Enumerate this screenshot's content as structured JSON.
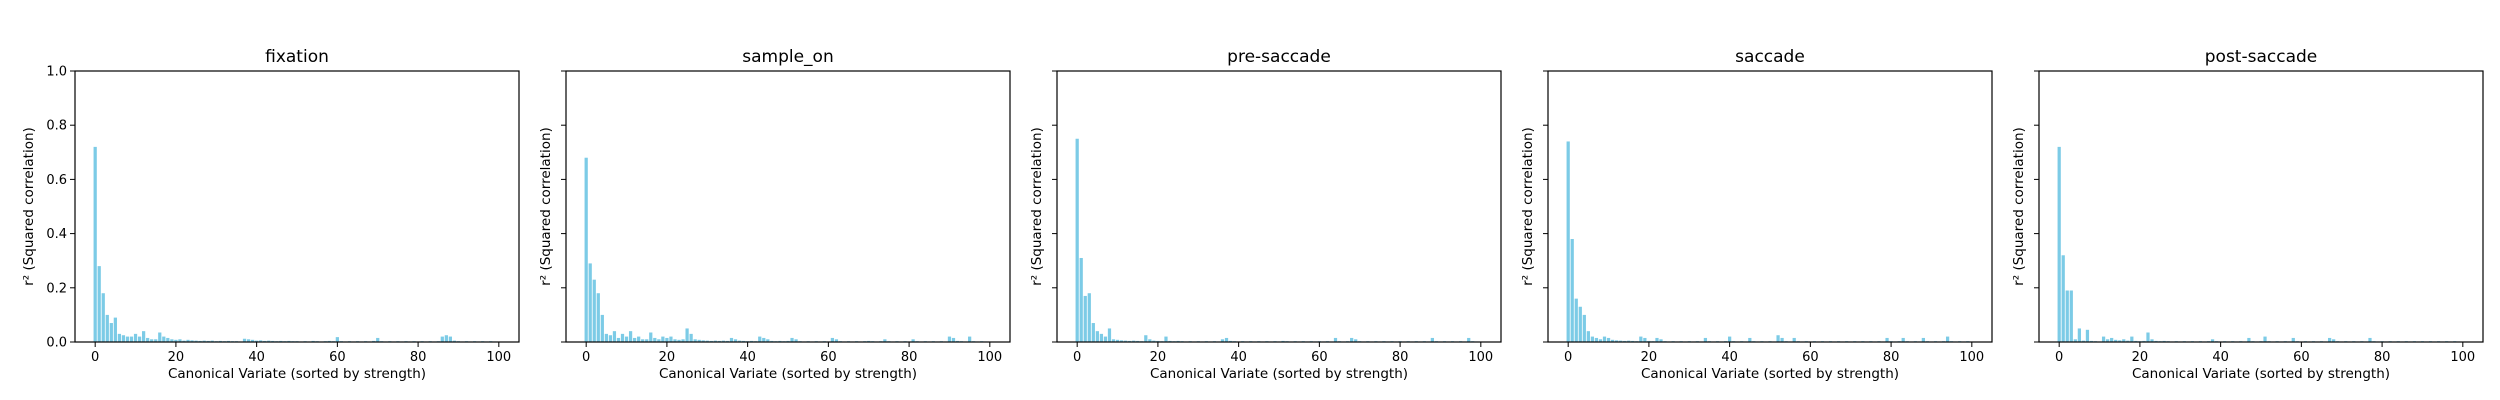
{
  "figure": {
    "ylabel": "r² (Squared correlation)",
    "xlabel": "Canonical Variate (sorted by strength)"
  },
  "colors": {
    "bar": "#7ccbe6",
    "axis": "#000000"
  },
  "chart_data": [
    {
      "type": "bar",
      "title": "fixation",
      "xlabel": "Canonical Variate (sorted by strength)",
      "ylabel": "r² (Squared correlation)",
      "xlim": [
        -5,
        105
      ],
      "ylim": [
        0,
        1.0
      ],
      "xticks": [
        0,
        20,
        40,
        60,
        80,
        100
      ],
      "yticks": [
        0.0,
        0.2,
        0.4,
        0.6,
        0.8,
        1.0
      ],
      "grid": false,
      "x": [
        0,
        1,
        2,
        3,
        4,
        5,
        6,
        7,
        8,
        9,
        10,
        11,
        12,
        13,
        14,
        15,
        16,
        17,
        18,
        19,
        20,
        21,
        22,
        23,
        24,
        25,
        26,
        27,
        28,
        29,
        30,
        31,
        32,
        33,
        34,
        35,
        36,
        37,
        38,
        39,
        40,
        41,
        42,
        43,
        44,
        45,
        46,
        47,
        48,
        49,
        50,
        51,
        52,
        53,
        54,
        55,
        56,
        57,
        58,
        59,
        60,
        61,
        62,
        63,
        64,
        65,
        66,
        67,
        68,
        69,
        70,
        71,
        72,
        73,
        74,
        75,
        76,
        77,
        78,
        79,
        80,
        81,
        82,
        83,
        84,
        85,
        86,
        87,
        88,
        89,
        90,
        91,
        92,
        93,
        94,
        95,
        96,
        97,
        98,
        99
      ],
      "values": [
        0.72,
        0.28,
        0.18,
        0.1,
        0.07,
        0.09,
        0.03,
        0.025,
        0.02,
        0.02,
        0.03,
        0.02,
        0.04,
        0.015,
        0.01,
        0.01,
        0.035,
        0.02,
        0.015,
        0.01,
        0.008,
        0.01,
        0.005,
        0.008,
        0.006,
        0.005,
        0.004,
        0.005,
        0.004,
        0.005,
        0.003,
        0.004,
        0.003,
        0.004,
        0.003,
        0.003,
        0.002,
        0.012,
        0.01,
        0.008,
        0.005,
        0.006,
        0.004,
        0.005,
        0.004,
        0.003,
        0.004,
        0.003,
        0.004,
        0.003,
        0.003,
        0.002,
        0.003,
        0.002,
        0.004,
        0.003,
        0.002,
        0.003,
        0.004,
        0.003,
        0.018,
        0.003,
        0.002,
        0.003,
        0.002,
        0.003,
        0.002,
        0.003,
        0.002,
        0.004,
        0.015,
        0.003,
        0.002,
        0.003,
        0.002,
        0.003,
        0.002,
        0.003,
        0.002,
        0.003,
        0.002,
        0.003,
        0.002,
        0.003,
        0.002,
        0.003,
        0.02,
        0.025,
        0.02,
        0.005,
        0.003,
        0.002,
        0.003,
        0.002,
        0.003,
        0.002,
        0.003,
        0.002,
        0.003,
        0.002
      ]
    },
    {
      "type": "bar",
      "title": "sample_on",
      "xlabel": "Canonical Variate (sorted by strength)",
      "ylabel": "",
      "xlim": [
        -5,
        105
      ],
      "ylim": [
        0,
        1.0
      ],
      "xticks": [
        0,
        20,
        40,
        60,
        80,
        100
      ],
      "grid": false,
      "x": [
        0,
        1,
        2,
        3,
        4,
        5,
        6,
        7,
        8,
        9,
        10,
        11,
        12,
        13,
        14,
        15,
        16,
        17,
        18,
        19,
        20,
        21,
        22,
        23,
        24,
        25,
        26,
        27,
        28,
        29,
        30,
        31,
        32,
        33,
        34,
        35,
        36,
        37,
        38,
        39,
        40,
        41,
        42,
        43,
        44,
        45,
        46,
        47,
        48,
        49,
        50,
        51,
        52,
        53,
        54,
        55,
        56,
        57,
        58,
        59,
        60,
        61,
        62,
        63,
        64,
        65,
        66,
        67,
        68,
        69,
        70,
        71,
        72,
        73,
        74,
        75,
        76,
        77,
        78,
        79,
        80,
        81,
        82,
        83,
        84,
        85,
        86,
        87,
        88,
        89,
        90,
        91,
        92,
        93,
        94,
        95,
        96,
        97,
        98,
        99
      ],
      "values": [
        0.68,
        0.29,
        0.23,
        0.18,
        0.1,
        0.03,
        0.025,
        0.04,
        0.015,
        0.03,
        0.02,
        0.04,
        0.015,
        0.02,
        0.01,
        0.01,
        0.035,
        0.015,
        0.01,
        0.02,
        0.015,
        0.02,
        0.01,
        0.008,
        0.01,
        0.05,
        0.03,
        0.01,
        0.008,
        0.006,
        0.005,
        0.004,
        0.005,
        0.004,
        0.005,
        0.004,
        0.015,
        0.01,
        0.005,
        0.004,
        0.003,
        0.004,
        0.003,
        0.02,
        0.015,
        0.01,
        0.004,
        0.003,
        0.004,
        0.003,
        0.004,
        0.015,
        0.01,
        0.003,
        0.002,
        0.003,
        0.002,
        0.003,
        0.002,
        0.003,
        0.002,
        0.015,
        0.01,
        0.003,
        0.002,
        0.003,
        0.002,
        0.003,
        0.002,
        0.003,
        0.004,
        0.003,
        0.002,
        0.003,
        0.01,
        0.003,
        0.002,
        0.003,
        0.002,
        0.003,
        0.002,
        0.01,
        0.003,
        0.002,
        0.003,
        0.002,
        0.003,
        0.002,
        0.003,
        0.002,
        0.02,
        0.015,
        0.004,
        0.003,
        0.002,
        0.02,
        0.003,
        0.002,
        0.003,
        0.002
      ]
    },
    {
      "type": "bar",
      "title": "pre-saccade",
      "xlabel": "Canonical Variate (sorted by strength)",
      "ylabel": "",
      "xlim": [
        -5,
        105
      ],
      "ylim": [
        0,
        1.0
      ],
      "xticks": [
        0,
        20,
        40,
        60,
        80,
        100
      ],
      "grid": false,
      "x": [
        0,
        1,
        2,
        3,
        4,
        5,
        6,
        7,
        8,
        9,
        10,
        11,
        12,
        13,
        14,
        15,
        16,
        17,
        18,
        19,
        20,
        21,
        22,
        23,
        24,
        25,
        26,
        27,
        28,
        29,
        30,
        31,
        32,
        33,
        34,
        35,
        36,
        37,
        38,
        39,
        40,
        41,
        42,
        43,
        44,
        45,
        46,
        47,
        48,
        49,
        50,
        51,
        52,
        53,
        54,
        55,
        56,
        57,
        58,
        59,
        60,
        61,
        62,
        63,
        64,
        65,
        66,
        67,
        68,
        69,
        70,
        71,
        72,
        73,
        74,
        75,
        76,
        77,
        78,
        79,
        80,
        81,
        82,
        83,
        84,
        85,
        86,
        87,
        88,
        89,
        90,
        91,
        92,
        93,
        94,
        95,
        96,
        97,
        98,
        99
      ],
      "values": [
        0.75,
        0.31,
        0.17,
        0.18,
        0.07,
        0.04,
        0.03,
        0.02,
        0.05,
        0.01,
        0.008,
        0.006,
        0.005,
        0.004,
        0.005,
        0.004,
        0.003,
        0.025,
        0.01,
        0.005,
        0.004,
        0.003,
        0.02,
        0.004,
        0.003,
        0.004,
        0.003,
        0.002,
        0.003,
        0.002,
        0.003,
        0.002,
        0.003,
        0.002,
        0.003,
        0.002,
        0.01,
        0.015,
        0.004,
        0.003,
        0.002,
        0.003,
        0.002,
        0.003,
        0.002,
        0.003,
        0.002,
        0.003,
        0.002,
        0.003,
        0.002,
        0.004,
        0.003,
        0.002,
        0.003,
        0.002,
        0.003,
        0.002,
        0.003,
        0.002,
        0.003,
        0.002,
        0.003,
        0.002,
        0.015,
        0.003,
        0.002,
        0.003,
        0.015,
        0.01,
        0.003,
        0.002,
        0.003,
        0.002,
        0.003,
        0.002,
        0.003,
        0.002,
        0.003,
        0.002,
        0.003,
        0.002,
        0.003,
        0.002,
        0.003,
        0.002,
        0.003,
        0.002,
        0.015,
        0.003,
        0.002,
        0.003,
        0.002,
        0.003,
        0.002,
        0.003,
        0.002,
        0.015,
        0.003,
        0.002
      ]
    },
    {
      "type": "bar",
      "title": "saccade",
      "xlabel": "Canonical Variate (sorted by strength)",
      "ylabel": "",
      "xlim": [
        -5,
        105
      ],
      "ylim": [
        0,
        1.0
      ],
      "xticks": [
        0,
        20,
        40,
        60,
        80,
        100
      ],
      "grid": false,
      "x": [
        0,
        1,
        2,
        3,
        4,
        5,
        6,
        7,
        8,
        9,
        10,
        11,
        12,
        13,
        14,
        15,
        16,
        17,
        18,
        19,
        20,
        21,
        22,
        23,
        24,
        25,
        26,
        27,
        28,
        29,
        30,
        31,
        32,
        33,
        34,
        35,
        36,
        37,
        38,
        39,
        40,
        41,
        42,
        43,
        44,
        45,
        46,
        47,
        48,
        49,
        50,
        51,
        52,
        53,
        54,
        55,
        56,
        57,
        58,
        59,
        60,
        61,
        62,
        63,
        64,
        65,
        66,
        67,
        68,
        69,
        70,
        71,
        72,
        73,
        74,
        75,
        76,
        77,
        78,
        79,
        80,
        81,
        82,
        83,
        84,
        85,
        86,
        87,
        88,
        89,
        90,
        91,
        92,
        93,
        94,
        95,
        96,
        97,
        98,
        99
      ],
      "values": [
        0.74,
        0.38,
        0.16,
        0.13,
        0.1,
        0.04,
        0.02,
        0.015,
        0.01,
        0.02,
        0.015,
        0.008,
        0.006,
        0.005,
        0.004,
        0.005,
        0.004,
        0.003,
        0.02,
        0.015,
        0.004,
        0.003,
        0.015,
        0.01,
        0.003,
        0.002,
        0.003,
        0.002,
        0.003,
        0.002,
        0.003,
        0.002,
        0.003,
        0.002,
        0.015,
        0.003,
        0.002,
        0.003,
        0.002,
        0.003,
        0.02,
        0.003,
        0.002,
        0.003,
        0.002,
        0.015,
        0.003,
        0.002,
        0.003,
        0.002,
        0.003,
        0.002,
        0.025,
        0.015,
        0.003,
        0.002,
        0.015,
        0.003,
        0.002,
        0.003,
        0.002,
        0.003,
        0.002,
        0.003,
        0.002,
        0.003,
        0.002,
        0.003,
        0.002,
        0.003,
        0.002,
        0.003,
        0.002,
        0.003,
        0.002,
        0.003,
        0.002,
        0.003,
        0.002,
        0.015,
        0.003,
        0.002,
        0.003,
        0.015,
        0.003,
        0.002,
        0.003,
        0.002,
        0.015,
        0.003,
        0.002,
        0.003,
        0.002,
        0.003,
        0.02,
        0.003,
        0.002,
        0.003,
        0.002,
        0.003
      ]
    },
    {
      "type": "bar",
      "title": "post-saccade",
      "xlabel": "Canonical Variate (sorted by strength)",
      "ylabel": "",
      "xlim": [
        -5,
        105
      ],
      "ylim": [
        0,
        1.0
      ],
      "xticks": [
        0,
        20,
        40,
        60,
        80,
        100
      ],
      "grid": false,
      "x": [
        0,
        1,
        2,
        3,
        4,
        5,
        6,
        7,
        8,
        9,
        10,
        11,
        12,
        13,
        14,
        15,
        16,
        17,
        18,
        19,
        20,
        21,
        22,
        23,
        24,
        25,
        26,
        27,
        28,
        29,
        30,
        31,
        32,
        33,
        34,
        35,
        36,
        37,
        38,
        39,
        40,
        41,
        42,
        43,
        44,
        45,
        46,
        47,
        48,
        49,
        50,
        51,
        52,
        53,
        54,
        55,
        56,
        57,
        58,
        59,
        60,
        61,
        62,
        63,
        64,
        65,
        66,
        67,
        68,
        69,
        70,
        71,
        72,
        73,
        74,
        75,
        76,
        77,
        78,
        79,
        80,
        81,
        82,
        83,
        84,
        85,
        86,
        87,
        88,
        89,
        90,
        91,
        92,
        93,
        94,
        95,
        96,
        97,
        98,
        99
      ],
      "values": [
        0.72,
        0.32,
        0.19,
        0.19,
        0.01,
        0.05,
        0.005,
        0.045,
        0.004,
        0.003,
        0.002,
        0.02,
        0.01,
        0.015,
        0.008,
        0.006,
        0.01,
        0.005,
        0.02,
        0.004,
        0.003,
        0.004,
        0.035,
        0.01,
        0.004,
        0.003,
        0.004,
        0.003,
        0.002,
        0.003,
        0.002,
        0.003,
        0.002,
        0.003,
        0.002,
        0.003,
        0.002,
        0.003,
        0.01,
        0.003,
        0.002,
        0.003,
        0.002,
        0.003,
        0.002,
        0.003,
        0.002,
        0.015,
        0.003,
        0.002,
        0.003,
        0.02,
        0.003,
        0.002,
        0.003,
        0.002,
        0.003,
        0.002,
        0.015,
        0.003,
        0.002,
        0.003,
        0.002,
        0.003,
        0.002,
        0.003,
        0.002,
        0.015,
        0.01,
        0.003,
        0.002,
        0.003,
        0.002,
        0.003,
        0.002,
        0.003,
        0.002,
        0.015,
        0.003,
        0.002,
        0.003,
        0.002,
        0.003,
        0.002,
        0.003,
        0.002,
        0.003,
        0.002,
        0.003,
        0.002,
        0.003,
        0.002,
        0.003,
        0.002,
        0.003,
        0.002,
        0.003,
        0.002,
        0.003,
        0.002
      ]
    }
  ]
}
